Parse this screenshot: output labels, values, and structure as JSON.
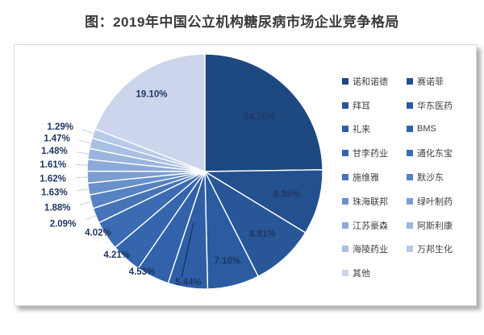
{
  "title": "图：2019年中国公立机构糖尿病市场企业竞争格局",
  "title_color": "#3a3a3a",
  "panel": {
    "background": "#ffffff",
    "border_color": "#d8d8d8"
  },
  "chart_data": {
    "type": "pie",
    "title": "2019年中国公立机构糖尿病市场企业竞争格局",
    "unit": "%",
    "start_angle_deg": 0,
    "direction": "clockwise",
    "legend_position": "right",
    "label_color": "#1f3864",
    "legend_text_color": "#404040",
    "separator_color": "#ffffff",
    "leader_line_color": "#c9cfdb",
    "callout_line_color": "#17375e",
    "slices": [
      {
        "label": "诺和诺德",
        "value": 24.76,
        "pct_label": "24.76%",
        "color": "#1e4880"
      },
      {
        "label": "赛诺菲",
        "value": 8.95,
        "pct_label": "8.95%",
        "color": "#24508f"
      },
      {
        "label": "拜耳",
        "value": 8.81,
        "pct_label": "8.81%",
        "color": "#285697"
      },
      {
        "label": "华东医药",
        "value": 7.1,
        "pct_label": "7.10%",
        "color": "#2b5ba0"
      },
      {
        "label": "礼来",
        "value": 5.44,
        "pct_label": "5.44%",
        "color": "#2e5fa6"
      },
      {
        "label": "BMS",
        "value": 4.53,
        "pct_label": "4.53%",
        "color": "#3162aa"
      },
      {
        "label": "甘李药业",
        "value": 4.21,
        "pct_label": "4.21%",
        "color": "#3465ad"
      },
      {
        "label": "通化东宝",
        "value": 4.02,
        "pct_label": "4.02%",
        "color": "#3b6bb2"
      },
      {
        "label": "施维雅",
        "value": 2.09,
        "pct_label": "2.09%",
        "color": "#4674b9"
      },
      {
        "label": "默沙东",
        "value": 1.88,
        "pct_label": "1.88%",
        "color": "#5681c2"
      },
      {
        "label": "珠海联邦",
        "value": 1.63,
        "pct_label": "1.63%",
        "color": "#6a90cb"
      },
      {
        "label": "绿叶制药",
        "value": 1.62,
        "pct_label": "1.62%",
        "color": "#7c9dd2"
      },
      {
        "label": "江苏豪森",
        "value": 1.61,
        "pct_label": "1.61%",
        "color": "#8caad8"
      },
      {
        "label": "阿斯利康",
        "value": 1.48,
        "pct_label": "1.48%",
        "color": "#9bb6de"
      },
      {
        "label": "海陵药业",
        "value": 1.47,
        "pct_label": "1.47%",
        "color": "#a9c0e3"
      },
      {
        "label": "万邦生化",
        "value": 1.29,
        "pct_label": "1.29%",
        "color": "#b7cae8"
      },
      {
        "label": "其他",
        "value": 19.1,
        "pct_label": "19.10%",
        "color": "#cdd5ec"
      }
    ]
  }
}
